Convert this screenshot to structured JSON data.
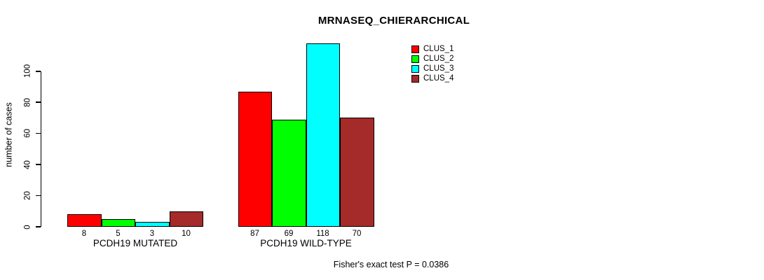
{
  "chart_data": {
    "type": "bar",
    "title": "MRNASEQ_CHIERARCHICAL",
    "ylabel": "number of cases",
    "categories": [
      "PCDH19 MUTATED",
      "PCDH19 WILD-TYPE"
    ],
    "series": [
      {
        "name": "CLUS_1",
        "color": "#ff0000",
        "values": [
          8,
          87
        ]
      },
      {
        "name": "CLUS_2",
        "color": "#00ff00",
        "values": [
          5,
          69
        ]
      },
      {
        "name": "CLUS_3",
        "color": "#00ffff",
        "values": [
          3,
          118
        ]
      },
      {
        "name": "CLUS_4",
        "color": "#a52a2a",
        "values": [
          10,
          70
        ]
      }
    ],
    "yticks": [
      0,
      20,
      40,
      60,
      80,
      100
    ],
    "ylim": [
      0,
      120
    ],
    "grid": false,
    "legend_position": "top-right",
    "annotation": "Fisher's exact test P = 0.0386"
  }
}
